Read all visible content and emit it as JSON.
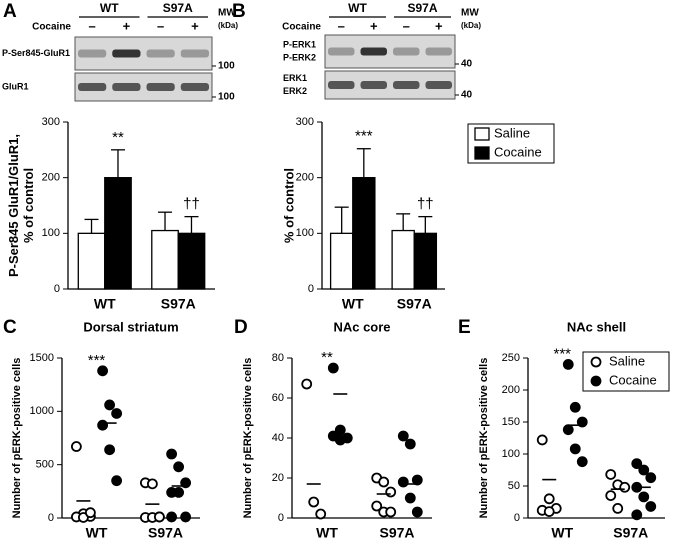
{
  "chart_data": [
    {
      "type": "bar",
      "panel": "A",
      "blot": {
        "groups": [
          "WT",
          "S97A"
        ],
        "treatment_label": "Cocaine",
        "signs": [
          "–",
          "+",
          "–",
          "+"
        ],
        "mw_label": [
          "MW",
          "(kDa)"
        ],
        "rows": [
          {
            "labels": [
              "P-Ser845-GluR1"
            ],
            "mw": 100
          },
          {
            "labels": [
              "GluR1"
            ],
            "mw": 100
          }
        ]
      },
      "ylabel": [
        "P-Ser845 GluR1/GluR1,",
        "% of control"
      ],
      "categories": [
        "WT",
        "S97A"
      ],
      "series": [
        {
          "name": "Saline",
          "color": "#ffffff",
          "values": [
            100,
            105
          ],
          "errors": [
            25,
            33
          ]
        },
        {
          "name": "Cocaine",
          "color": "#000000",
          "values": [
            200,
            100
          ],
          "errors": [
            50,
            30
          ],
          "significance": [
            "**",
            "††"
          ]
        }
      ],
      "ylim": [
        0,
        300
      ],
      "yticks": [
        0,
        100,
        200,
        300
      ]
    },
    {
      "type": "bar",
      "panel": "B",
      "blot": {
        "groups": [
          "WT",
          "S97A"
        ],
        "treatment_label": "Cocaine",
        "signs": [
          "–",
          "+",
          "–",
          "+"
        ],
        "mw_label": [
          "MW",
          "(kDa)"
        ],
        "rows": [
          {
            "labels": [
              "P-ERK1",
              "P-ERK2"
            ],
            "mw": 40
          },
          {
            "labels": [
              "ERK1",
              "ERK2"
            ],
            "mw": 40
          }
        ]
      },
      "ylabel": [
        "% of control"
      ],
      "categories": [
        "WT",
        "S97A"
      ],
      "series": [
        {
          "name": "Saline",
          "color": "#ffffff",
          "values": [
            100,
            105
          ],
          "errors": [
            47,
            30
          ]
        },
        {
          "name": "Cocaine",
          "color": "#000000",
          "values": [
            200,
            100
          ],
          "errors": [
            52,
            30
          ],
          "significance": [
            "***",
            "††"
          ]
        }
      ],
      "ylim": [
        0,
        300
      ],
      "yticks": [
        0,
        100,
        200,
        300
      ],
      "legend": "right"
    },
    {
      "type": "scatter",
      "panel": "C",
      "title": "Dorsal striatum",
      "ylabel": [
        "Number of pERK-positive cells"
      ],
      "categories": [
        "WT",
        "S97A"
      ],
      "series": [
        {
          "name": "Saline",
          "color": "#ffffff",
          "values": [
            [
              670,
              40,
              15,
              10,
              5,
              50
            ],
            [
              330,
              320,
              10,
              5,
              5,
              10
            ]
          ],
          "means": [
            160,
            130
          ]
        },
        {
          "name": "Cocaine",
          "color": "#000000",
          "values": [
            [
              1380,
              1060,
              980,
              870,
              640,
              350
            ],
            [
              600,
              480,
              330,
              240,
              240,
              10,
              10
            ]
          ],
          "means": [
            890,
            300
          ],
          "significance": [
            "***",
            null
          ]
        }
      ],
      "ylim": [
        0,
        1500
      ],
      "yticks": [
        0,
        500,
        1000,
        1500
      ]
    },
    {
      "type": "scatter",
      "panel": "D",
      "title": "NAc core",
      "ylabel": [
        "Number of pERK-positive cells"
      ],
      "categories": [
        "WT",
        "S97A"
      ],
      "series": [
        {
          "name": "Saline",
          "color": "#ffffff",
          "values": [
            [
              67,
              8,
              2
            ],
            [
              20,
              18,
              13,
              6,
              3,
              3
            ]
          ],
          "means": [
            17,
            12
          ]
        },
        {
          "name": "Cocaine",
          "color": "#000000",
          "values": [
            [
              75,
              44,
              40,
              41,
              39
            ],
            [
              41,
              37,
              19,
              18,
              10,
              3
            ]
          ],
          "means": [
            62,
            17
          ],
          "significance": [
            "**",
            null
          ]
        }
      ],
      "ylim": [
        0,
        80
      ],
      "yticks": [
        0,
        20,
        40,
        60,
        80
      ]
    },
    {
      "type": "scatter",
      "panel": "E",
      "title": "NAc shell",
      "ylabel": [
        "Number of pERK-positive cells"
      ],
      "categories": [
        "WT",
        "S97A"
      ],
      "series": [
        {
          "name": "Saline",
          "color": "#ffffff",
          "values": [
            [
              122,
              30,
              15,
              12,
              10
            ],
            [
              68,
              52,
              48,
              35,
              15
            ]
          ],
          "means": [
            60,
            45
          ]
        },
        {
          "name": "Cocaine",
          "color": "#000000",
          "values": [
            [
              240,
              173,
              150,
              138,
              108,
              88
            ],
            [
              85,
              75,
              63,
              48,
              33,
              18,
              5
            ]
          ],
          "means": [
            145,
            48
          ],
          "significance": [
            "***",
            null
          ]
        }
      ],
      "ylim": [
        0,
        250
      ],
      "yticks": [
        0,
        50,
        100,
        150,
        200,
        250
      ],
      "legend": "upper right"
    }
  ]
}
